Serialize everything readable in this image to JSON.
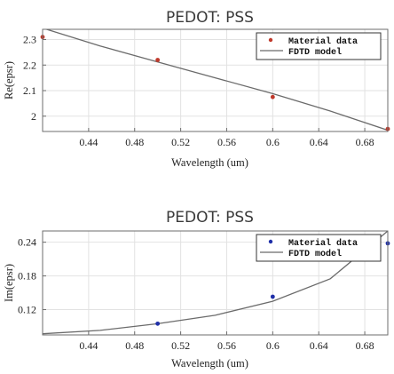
{
  "chart_data": [
    {
      "type": "scatter",
      "title": "PEDOT: PSS",
      "xlabel": "Wavelength (um)",
      "ylabel": "Re(epsr)",
      "xlim": [
        0.4,
        0.7
      ],
      "ylim": [
        1.94,
        2.34
      ],
      "xticks": [
        0.44,
        0.48,
        0.52,
        0.56,
        0.6,
        0.64,
        0.68
      ],
      "xtick_labels": [
        "0.44",
        "0.48",
        "0.52",
        "0.56",
        "0.6",
        "0.64",
        "0.68"
      ],
      "yticks": [
        2.0,
        2.1,
        2.2,
        2.3
      ],
      "ytick_labels": [
        "2",
        "2.1",
        "2.2",
        "2.3"
      ],
      "grid": true,
      "legend_position": "top-right",
      "series": [
        {
          "name": "Material data",
          "kind": "points",
          "color": "#c0392b",
          "x": [
            0.4,
            0.5,
            0.6,
            0.7
          ],
          "y": [
            2.31,
            2.22,
            2.075,
            1.95
          ]
        },
        {
          "name": "FDTD model",
          "kind": "line",
          "color": "#6b6b6b",
          "x": [
            0.4,
            0.45,
            0.5,
            0.55,
            0.6,
            0.65,
            0.7
          ],
          "y": [
            2.345,
            2.275,
            2.212,
            2.15,
            2.088,
            2.02,
            1.945
          ]
        }
      ]
    },
    {
      "type": "scatter",
      "title": "PEDOT: PSS",
      "xlabel": "Wavelength (um)",
      "ylabel": "Im(epsr)",
      "xlim": [
        0.4,
        0.7
      ],
      "ylim": [
        0.075,
        0.26
      ],
      "xticks": [
        0.44,
        0.48,
        0.52,
        0.56,
        0.6,
        0.64,
        0.68
      ],
      "xtick_labels": [
        "0.44",
        "0.48",
        "0.52",
        "0.56",
        "0.6",
        "0.64",
        "0.68"
      ],
      "yticks": [
        0.12,
        0.18,
        0.24
      ],
      "ytick_labels": [
        "0.12",
        "0.18",
        "0.24"
      ],
      "grid": true,
      "legend_position": "top-right",
      "series": [
        {
          "name": "Material data",
          "kind": "points",
          "color": "#1f2fa8",
          "x": [
            0.5,
            0.6,
            0.7
          ],
          "y": [
            0.095,
            0.143,
            0.238
          ]
        },
        {
          "name": "FDTD model",
          "kind": "line",
          "color": "#6b6b6b",
          "x": [
            0.4,
            0.45,
            0.5,
            0.55,
            0.6,
            0.65,
            0.7
          ],
          "y": [
            0.077,
            0.083,
            0.095,
            0.11,
            0.135,
            0.175,
            0.26
          ]
        }
      ]
    }
  ]
}
